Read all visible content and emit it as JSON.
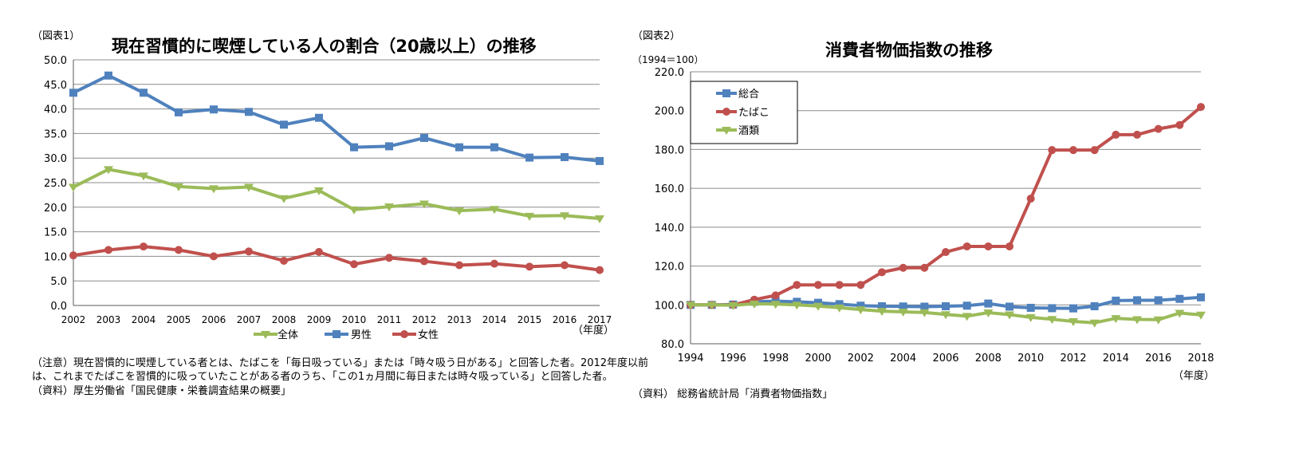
{
  "left": {
    "fig_label": "（図表1）",
    "note_line1": "（注意）現在習慣的に喫煙している者とは、たばこを「毎日吸っている」または「時々吸う日がある」と回答した者。2012年度以前",
    "note_line2": "は、これまでたばこを習慣的に吸っていたことがある者のうち、「この1ヵ月間に毎日または時々吸っている」と回答した者。",
    "source": "（資料）厚生労働省「国民健康・栄養調査結果の概要」"
  },
  "right": {
    "fig_label": "（図表2）",
    "unit": "（1994＝100）",
    "source": "（資料） 総務省統計局「消費者物価指数」"
  },
  "chart_data": [
    {
      "type": "line",
      "title": "現在習慣的に喫煙している人の割合（20歳以上）の推移",
      "xlabel": "（年度）",
      "x": [
        2002,
        2003,
        2004,
        2005,
        2006,
        2007,
        2008,
        2009,
        2010,
        2011,
        2012,
        2013,
        2014,
        2015,
        2016,
        2017
      ],
      "ylim": [
        0,
        50
      ],
      "yticks": [
        0,
        5,
        10,
        15,
        20,
        25,
        30,
        35,
        40,
        45,
        50
      ],
      "ytick_labels": [
        "0.0",
        "5.0",
        "10.0",
        "15.0",
        "20.0",
        "25.0",
        "30.0",
        "35.0",
        "40.0",
        "45.0",
        "50.0"
      ],
      "grid": true,
      "legend_position": "bottom",
      "series": [
        {
          "name": "全体",
          "color": "#9bbb59",
          "values": [
            24.1,
            27.7,
            26.4,
            24.2,
            23.8,
            24.1,
            21.8,
            23.4,
            19.5,
            20.1,
            20.7,
            19.3,
            19.6,
            18.2,
            18.3,
            17.7
          ]
        },
        {
          "name": "男性",
          "color": "#4f81bd",
          "values": [
            43.3,
            46.8,
            43.3,
            39.3,
            39.9,
            39.4,
            36.8,
            38.2,
            32.2,
            32.4,
            34.1,
            32.2,
            32.2,
            30.1,
            30.2,
            29.4
          ]
        },
        {
          "name": "女性",
          "color": "#c0504d",
          "values": [
            10.2,
            11.3,
            12.0,
            11.3,
            10.0,
            11.0,
            9.1,
            10.9,
            8.4,
            9.7,
            9.0,
            8.2,
            8.5,
            7.9,
            8.2,
            7.2
          ]
        }
      ]
    },
    {
      "type": "line",
      "title": "消費者物価指数の推移",
      "xlabel": "（年度）",
      "x": [
        1994,
        1995,
        1996,
        1997,
        1998,
        1999,
        2000,
        2001,
        2002,
        2003,
        2004,
        2005,
        2006,
        2007,
        2008,
        2009,
        2010,
        2011,
        2012,
        2013,
        2014,
        2015,
        2016,
        2017,
        2018
      ],
      "xtick_labels": [
        "1994",
        "1996",
        "1998",
        "2000",
        "2002",
        "2004",
        "2006",
        "2008",
        "2010",
        "2012",
        "2014",
        "2016",
        "2018"
      ],
      "ylim": [
        80,
        220
      ],
      "yticks": [
        80,
        100,
        120,
        140,
        160,
        180,
        200,
        220
      ],
      "ytick_labels": [
        "80.0",
        "100.0",
        "120.0",
        "140.0",
        "160.0",
        "180.0",
        "200.0",
        "220.0"
      ],
      "grid": true,
      "legend_position": "top-left",
      "series": [
        {
          "name": "総合",
          "color": "#4f81bd",
          "values": [
            100,
            100,
            100.2,
            101.6,
            101.9,
            101.6,
            101.1,
            100.4,
            99.6,
            99.3,
            99.2,
            99.1,
            99.3,
            99.6,
            100.7,
            99.1,
            98.5,
            98.3,
            98.2,
            99.3,
            102.2,
            102.4,
            102.4,
            103.1,
            103.9
          ]
        },
        {
          "name": "たばこ",
          "color": "#c0504d",
          "values": [
            100,
            100,
            100,
            102.7,
            104.9,
            110.3,
            110.3,
            110.3,
            110.3,
            116.8,
            119.1,
            119.1,
            127.2,
            130.1,
            130.1,
            130.1,
            154.7,
            179.7,
            179.7,
            179.7,
            187.6,
            187.6,
            190.6,
            192.6,
            201.9
          ]
        },
        {
          "name": "酒類",
          "color": "#9bbb59",
          "values": [
            100,
            100,
            99.8,
            100.6,
            100.4,
            100.0,
            99.4,
            98.6,
            97.6,
            96.8,
            96.4,
            96.1,
            95.1,
            94.2,
            96.0,
            95.0,
            93.6,
            92.6,
            91.5,
            90.8,
            93.1,
            92.5,
            92.4,
            95.8,
            94.9
          ]
        }
      ]
    }
  ]
}
